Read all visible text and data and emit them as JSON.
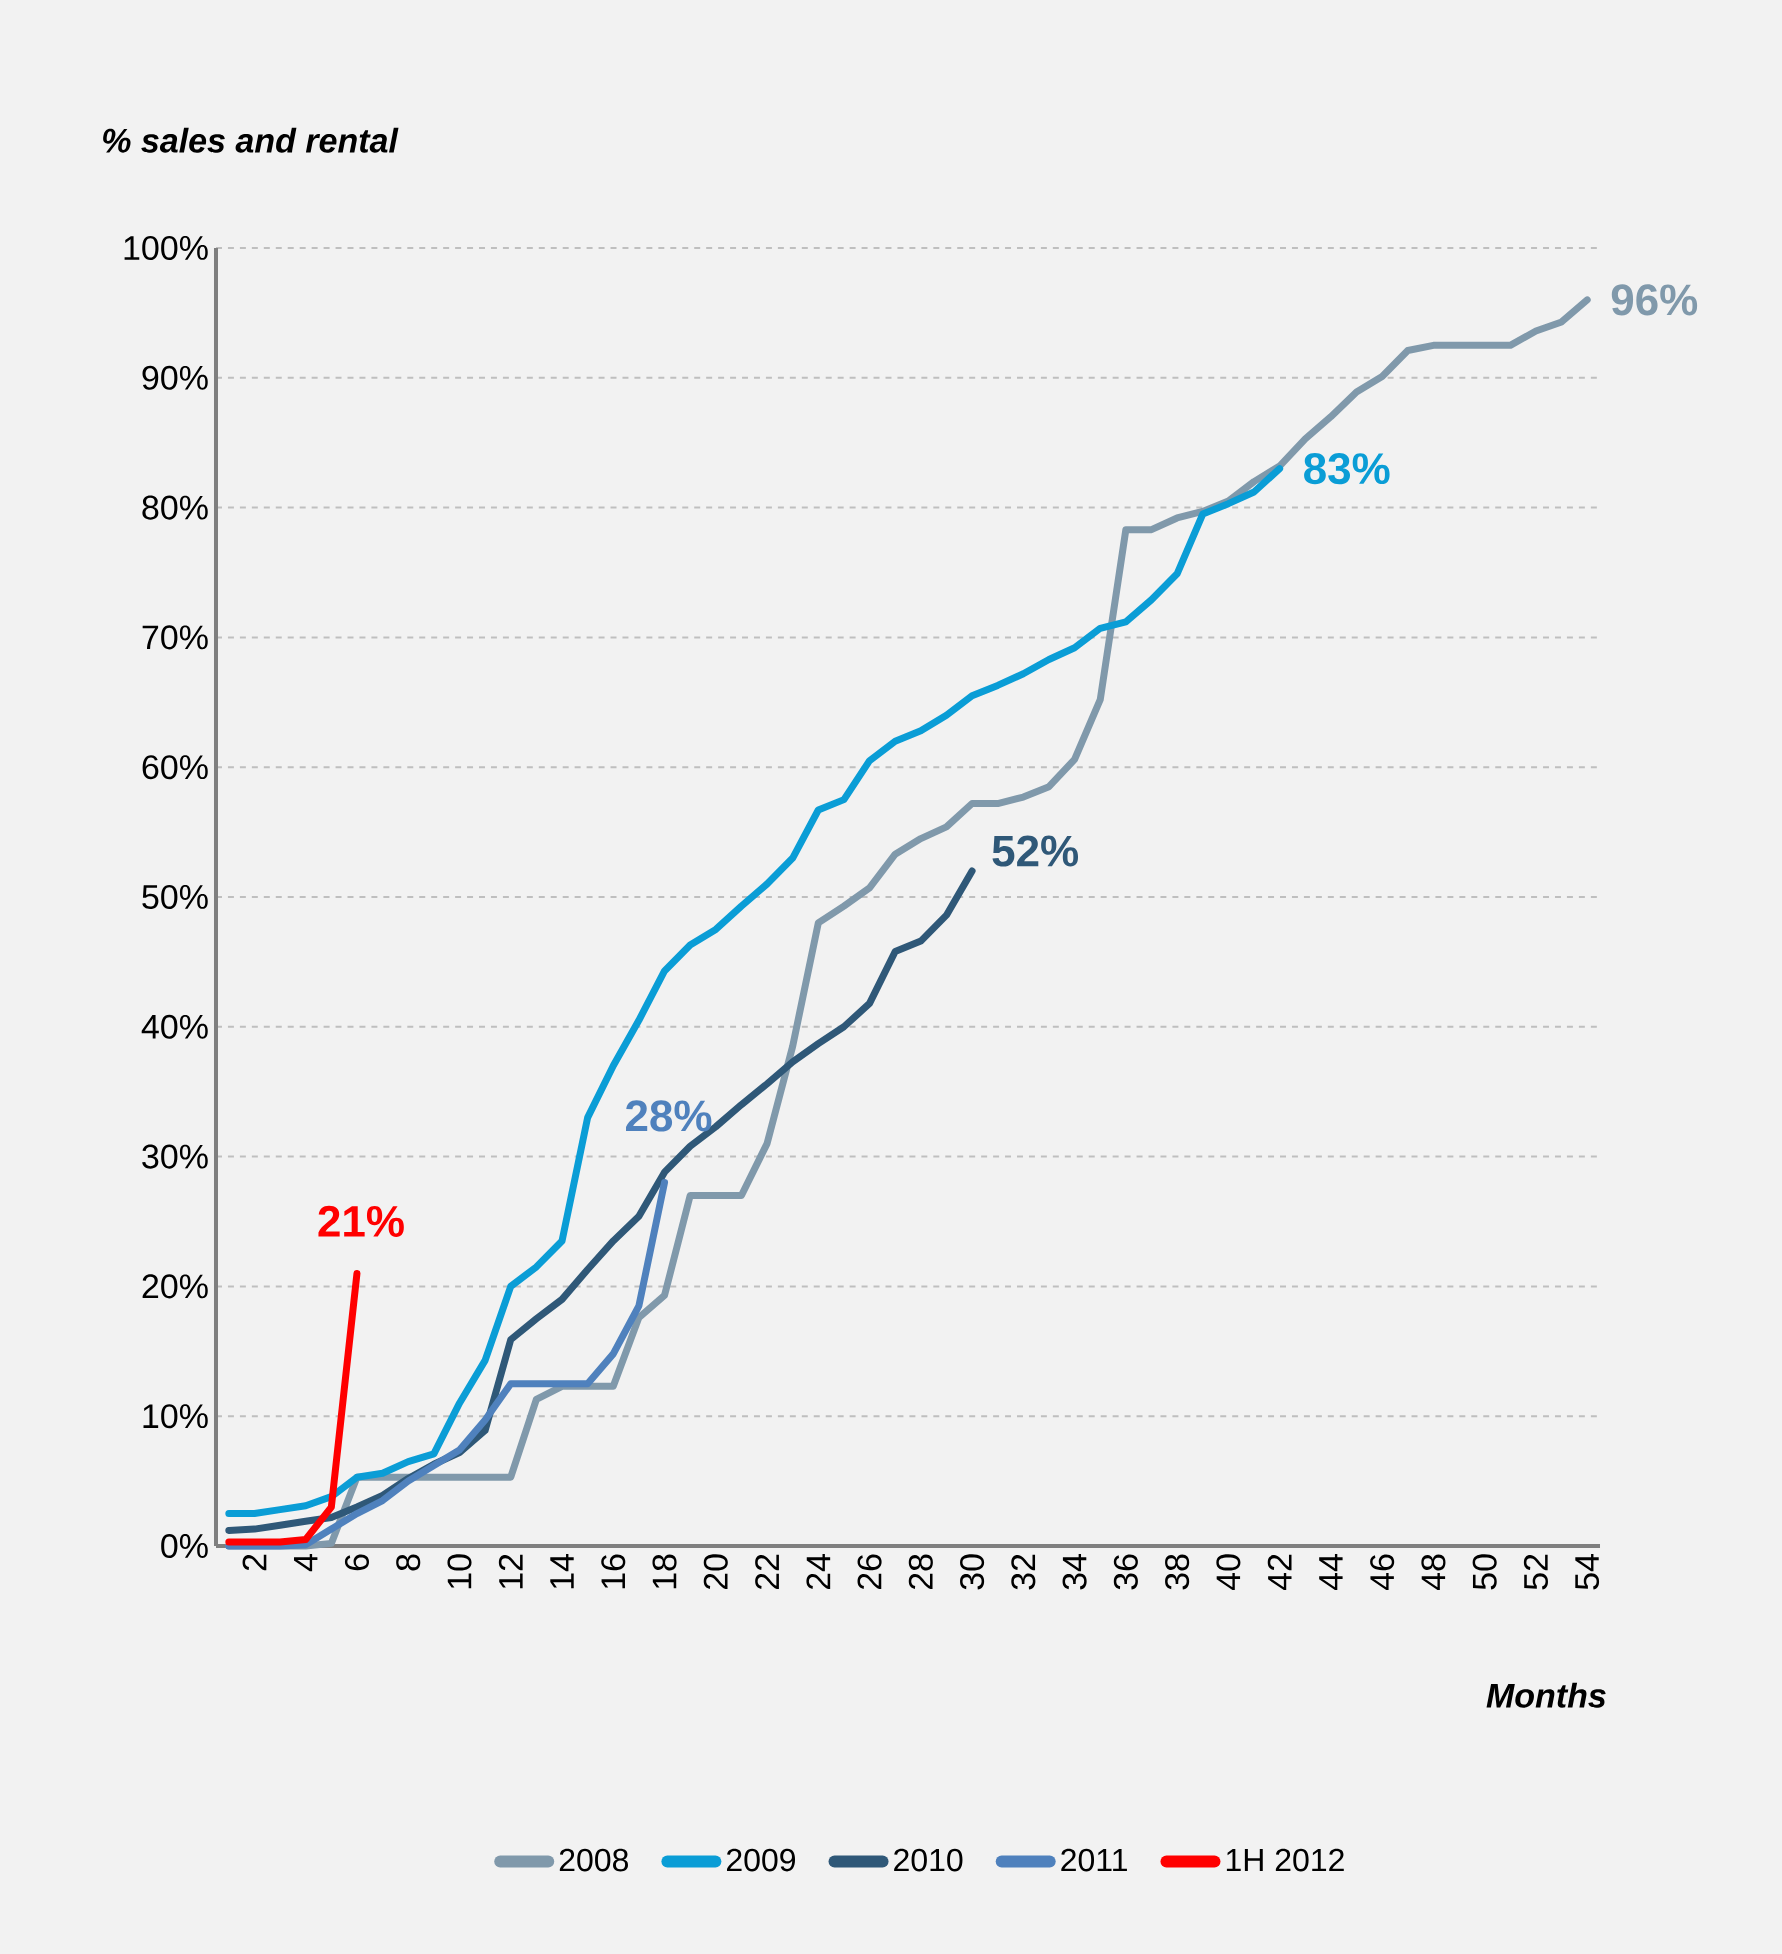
{
  "chart_data": {
    "type": "line",
    "ylabel": "% sales and rental",
    "xlabel": "Months",
    "categories": [
      null,
      "2",
      null,
      "4",
      null,
      "6",
      null,
      "8",
      null,
      "10",
      null,
      "12",
      null,
      "14",
      null,
      "16",
      null,
      "18",
      null,
      "20",
      null,
      "22",
      null,
      "24",
      null,
      "26",
      null,
      "28",
      null,
      "30",
      null,
      "32",
      null,
      "34",
      null,
      "36",
      null,
      "38",
      null,
      "40",
      null,
      "42",
      null,
      "44",
      null,
      "46",
      null,
      "48",
      null,
      "50",
      null,
      "52",
      null,
      "54"
    ],
    "ylim": [
      0,
      100
    ],
    "yticks": [
      {
        "value": 0,
        "label": "0%"
      },
      {
        "value": 10,
        "label": "10%"
      },
      {
        "value": 20,
        "label": "20%"
      },
      {
        "value": 30,
        "label": "30%"
      },
      {
        "value": 40,
        "label": "40%"
      },
      {
        "value": 50,
        "label": "50%"
      },
      {
        "value": 60,
        "label": "60%"
      },
      {
        "value": 70,
        "label": "70%"
      },
      {
        "value": 80,
        "label": "80%"
      },
      {
        "value": 90,
        "label": "90%"
      },
      {
        "value": 100,
        "label": "100%"
      }
    ],
    "grid": "y",
    "legend": "bottom",
    "marker": "none",
    "series": [
      {
        "name": "2008",
        "color": "#8099ab",
        "values": [
          0,
          0,
          0,
          0,
          0.2,
          5.3,
          5.3,
          5.3,
          5.3,
          5.3,
          5.3,
          5.3,
          11.3,
          12.3,
          12.3,
          12.3,
          17.6,
          19.3,
          27,
          27,
          27,
          31,
          38.5,
          48,
          49.3,
          50.7,
          53.3,
          54.5,
          55.4,
          57.2,
          57.2,
          57.7,
          58.5,
          60.6,
          65.2,
          78.3,
          78.3,
          79.2,
          79.7,
          80.5,
          82,
          83.2,
          85.3,
          87,
          88.9,
          90.1,
          92.1,
          92.5,
          92.5,
          92.5,
          92.5,
          93.6,
          94.3,
          96
        ],
        "value_labels": [
          null,
          null,
          null,
          null,
          null,
          null,
          null,
          null,
          null,
          null,
          null,
          null,
          null,
          null,
          null,
          null,
          null,
          null,
          null,
          null,
          null,
          null,
          null,
          null,
          null,
          null,
          null,
          null,
          null,
          null,
          null,
          null,
          null,
          null,
          null,
          null,
          null,
          null,
          null,
          null,
          null,
          null,
          null,
          null,
          null,
          null,
          null,
          null,
          null,
          null,
          null,
          null,
          null,
          "96%"
        ]
      },
      {
        "name": "2009",
        "color": "#0a9dd6",
        "values": [
          2.5,
          2.5,
          2.8,
          3.1,
          3.8,
          5.3,
          5.6,
          6.5,
          7.1,
          11,
          14.3,
          20,
          21.5,
          23.5,
          33,
          37,
          40.5,
          44.3,
          46.3,
          47.5,
          49.3,
          51,
          53,
          56.7,
          57.5,
          60.5,
          62,
          62.8,
          64,
          65.5,
          66.3,
          67.2,
          68.3,
          69.2,
          70.7,
          71.2,
          72.9,
          74.9,
          79.5,
          80.3,
          81.2,
          83,
          null,
          null,
          null,
          null,
          null,
          null,
          null,
          null,
          null,
          null,
          null,
          null
        ],
        "value_labels": [
          null,
          null,
          null,
          null,
          null,
          null,
          null,
          null,
          null,
          null,
          null,
          null,
          null,
          null,
          null,
          null,
          null,
          null,
          null,
          null,
          null,
          null,
          null,
          null,
          null,
          null,
          null,
          null,
          null,
          null,
          null,
          null,
          null,
          null,
          null,
          null,
          null,
          null,
          null,
          null,
          null,
          "83%",
          null,
          null,
          null,
          null,
          null,
          null,
          null,
          null,
          null,
          null,
          null,
          null
        ]
      },
      {
        "name": "2010",
        "color": "#2f5878",
        "values": [
          1.2,
          1.3,
          1.6,
          1.9,
          2.2,
          3,
          3.9,
          5.2,
          6.3,
          7.2,
          8.9,
          15.9,
          17.5,
          19,
          21.3,
          23.5,
          25.4,
          28.8,
          30.8,
          32.3,
          34,
          35.6,
          37.3,
          38.7,
          40,
          41.8,
          45.8,
          46.6,
          48.6,
          52,
          null,
          null,
          null,
          null,
          null,
          null,
          null,
          null,
          null,
          null,
          null,
          null,
          null,
          null,
          null,
          null,
          null,
          null,
          null,
          null,
          null,
          null,
          null,
          null
        ],
        "value_labels": [
          null,
          null,
          null,
          null,
          null,
          null,
          null,
          null,
          null,
          null,
          null,
          null,
          null,
          null,
          null,
          null,
          null,
          null,
          null,
          null,
          null,
          null,
          null,
          null,
          null,
          null,
          null,
          null,
          null,
          "52%",
          null,
          null,
          null,
          null,
          null,
          null,
          null,
          null,
          null,
          null,
          null,
          null,
          null,
          null,
          null,
          null,
          null,
          null,
          null,
          null,
          null,
          null,
          null,
          null
        ]
      },
      {
        "name": "2011",
        "color": "#4f81bd",
        "values": [
          0,
          0,
          0,
          0.1,
          1.3,
          2.5,
          3.5,
          5,
          6.2,
          7.4,
          9.7,
          12.5,
          12.5,
          12.5,
          12.5,
          14.8,
          18.5,
          28,
          null,
          null,
          null,
          null,
          null,
          null,
          null,
          null,
          null,
          null,
          null,
          null,
          null,
          null,
          null,
          null,
          null,
          null,
          null,
          null,
          null,
          null,
          null,
          null,
          null,
          null,
          null,
          null,
          null,
          null,
          null,
          null,
          null,
          null,
          null,
          null
        ],
        "value_labels": [
          null,
          null,
          null,
          null,
          null,
          null,
          null,
          null,
          null,
          null,
          null,
          null,
          null,
          null,
          null,
          null,
          null,
          "28%",
          null,
          null,
          null,
          null,
          null,
          null,
          null,
          null,
          null,
          null,
          null,
          null,
          null,
          null,
          null,
          null,
          null,
          null,
          null,
          null,
          null,
          null,
          null,
          null,
          null,
          null,
          null,
          null,
          null,
          null,
          null,
          null,
          null,
          null,
          null,
          null
        ]
      },
      {
        "name": "1H 2012",
        "color": "#ff0000",
        "values": [
          0.3,
          0.3,
          0.3,
          0.5,
          3,
          21,
          null,
          null,
          null,
          null,
          null,
          null,
          null,
          null,
          null,
          null,
          null,
          null,
          null,
          null,
          null,
          null,
          null,
          null,
          null,
          null,
          null,
          null,
          null,
          null,
          null,
          null,
          null,
          null,
          null,
          null,
          null,
          null,
          null,
          null,
          null,
          null,
          null,
          null,
          null,
          null,
          null,
          null,
          null,
          null,
          null,
          null,
          null,
          null
        ],
        "value_labels": [
          null,
          null,
          null,
          null,
          null,
          "21%",
          null,
          null,
          null,
          null,
          null,
          null,
          null,
          null,
          null,
          null,
          null,
          null,
          null,
          null,
          null,
          null,
          null,
          null,
          null,
          null,
          null,
          null,
          null,
          null,
          null,
          null,
          null,
          null,
          null,
          null,
          null,
          null,
          null,
          null,
          null,
          null,
          null,
          null,
          null,
          null,
          null,
          null,
          null,
          null,
          null,
          null,
          null,
          null
        ]
      }
    ]
  }
}
